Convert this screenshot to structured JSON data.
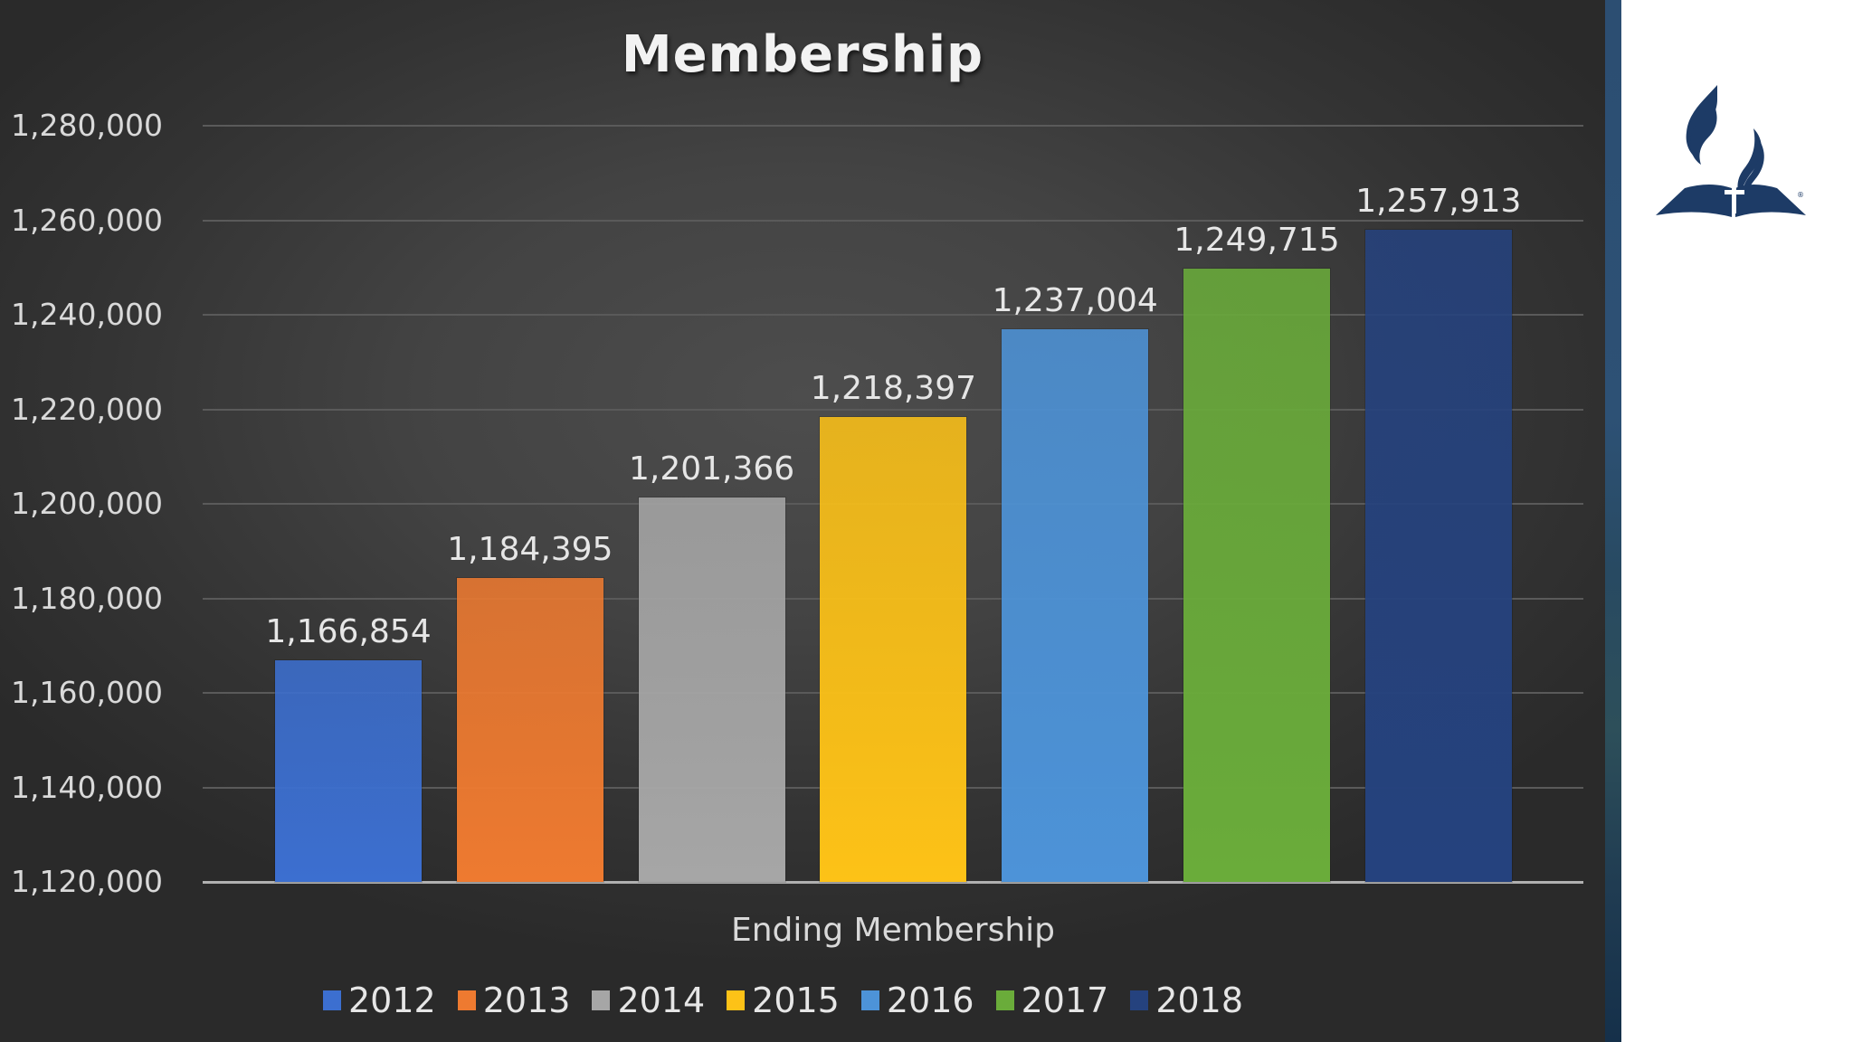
{
  "slide": {
    "title": "Membership",
    "logo": "church-flame-bible-logo-icon",
    "colors": {
      "panel_center": "#4d4d4d",
      "panel_edge": "#2a2a2a",
      "strip": "#2c4e72",
      "logo": "#1d3b66"
    }
  },
  "chart_data": {
    "type": "bar",
    "title": "Membership",
    "xlabel": "Ending Membership",
    "ylabel": "",
    "categories": [
      "2012",
      "2013",
      "2014",
      "2015",
      "2016",
      "2017",
      "2018"
    ],
    "values": [
      1166854,
      1184395,
      1201366,
      1218397,
      1237004,
      1249715,
      1257913
    ],
    "value_labels": [
      "1,166,854",
      "1,184,395",
      "1,201,366",
      "1,218,397",
      "1,237,004",
      "1,249,715",
      "1,257,913"
    ],
    "colors": [
      "#3c6fd0",
      "#ee7a30",
      "#a6a6a6",
      "#fdc217",
      "#4d93d8",
      "#6aac3a",
      "#25427e"
    ],
    "ylim": [
      1120000,
      1280000
    ],
    "yticks": [
      "1,280,000",
      "1,260,000",
      "1,240,000",
      "1,220,000",
      "1,200,000",
      "1,180,000",
      "1,160,000",
      "1,140,000",
      "1,120,000"
    ],
    "grid": true,
    "legend": {
      "position": "bottom",
      "entries": [
        "2012",
        "2013",
        "2014",
        "2015",
        "2016",
        "2017",
        "2018"
      ]
    }
  }
}
